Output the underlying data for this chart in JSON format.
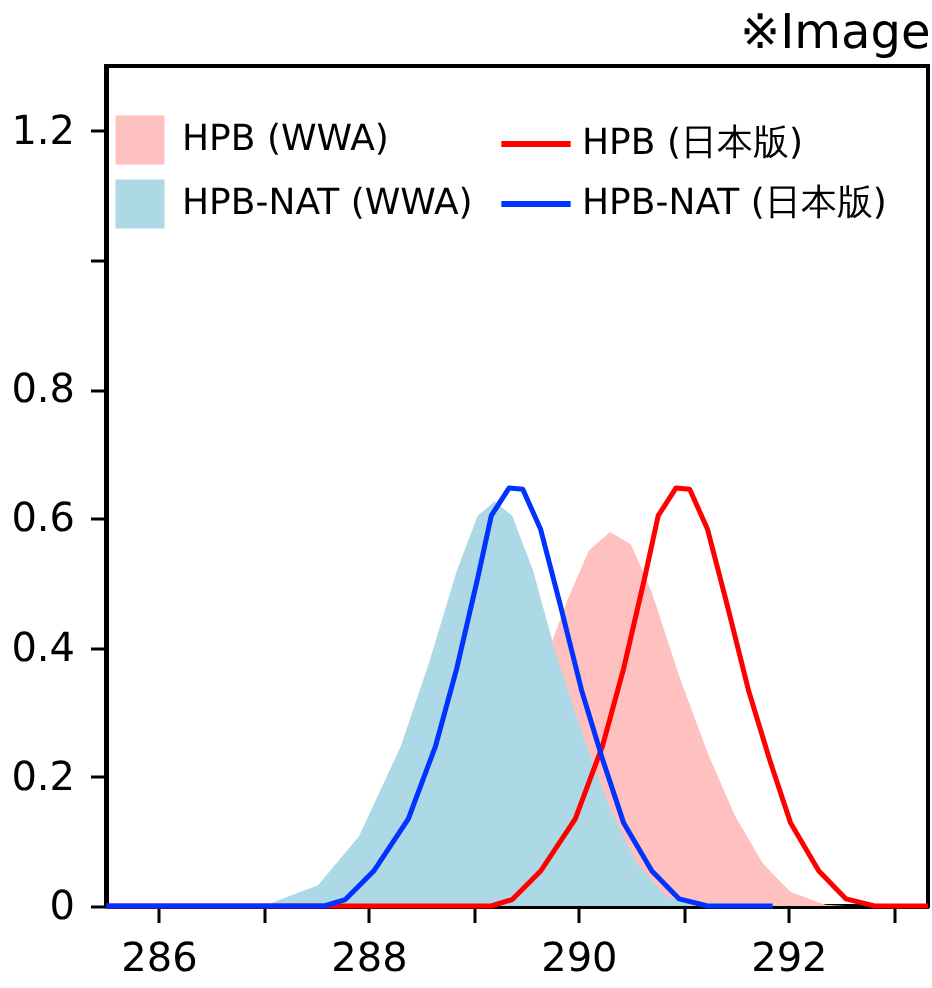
{
  "chart_data": {
    "type": "line",
    "annotations": [
      "※Image"
    ],
    "xlim": [
      285.5,
      293.33
    ],
    "ylim": [
      0,
      1.3
    ],
    "xticks": [
      286,
      {
        "value": 287,
        "label": null
      },
      288,
      {
        "value": 289,
        "label": null
      },
      290,
      {
        "value": 291,
        "label": null
      },
      292,
      {
        "value": 293,
        "label": null
      }
    ],
    "yticks": [
      0,
      0.2,
      0.4,
      0.6,
      0.8,
      {
        "value": 1.0,
        "label": null
      },
      1.2
    ],
    "grid": false,
    "legend": "top right",
    "marker": "none",
    "line_style": "solid",
    "series": [
      {
        "name": "HPB (WWA)",
        "type": "area",
        "color": "#ffc0c0",
        "x": [
          289.75,
          289.9,
          290.1,
          290.3,
          290.5,
          290.7,
          290.96,
          291.23,
          291.49,
          291.76,
          292.02,
          292.35,
          292.55
        ],
        "values": [
          0.41,
          0.475,
          0.55,
          0.579,
          0.56,
          0.485,
          0.356,
          0.237,
          0.14,
          0.065,
          0.022,
          0.002,
          0
        ]
      },
      {
        "name": "HPB-NAT (WWA)",
        "type": "area",
        "color": "#add8e6",
        "x": [
          287.0,
          287.52,
          287.91,
          288.31,
          288.58,
          288.84,
          289.04,
          289.2,
          289.37,
          289.57,
          289.77,
          290.03,
          290.3,
          290.56,
          290.83,
          291.09
        ],
        "values": [
          0,
          0.032,
          0.108,
          0.248,
          0.378,
          0.518,
          0.604,
          0.626,
          0.604,
          0.518,
          0.399,
          0.27,
          0.151,
          0.065,
          0.016,
          0
        ]
      },
      {
        "name": "HPB (日本版)",
        "color": "#ff0000",
        "x": [
          285.5,
          289.17,
          289.37,
          289.64,
          289.97,
          290.23,
          290.43,
          290.63,
          290.76,
          290.93,
          291.06,
          291.23,
          291.42,
          291.62,
          291.82,
          292.02,
          292.29,
          292.55,
          292.82,
          293.33
        ],
        "values": [
          0,
          0,
          0.01,
          0.054,
          0.135,
          0.248,
          0.367,
          0.507,
          0.604,
          0.647,
          0.645,
          0.583,
          0.464,
          0.334,
          0.227,
          0.129,
          0.054,
          0.011,
          0,
          0
        ]
      },
      {
        "name": "HPB-NAT (日本版)",
        "color": "#0033ff",
        "x": [
          285.5,
          287.58,
          287.78,
          288.05,
          288.38,
          288.64,
          288.84,
          289.04,
          289.17,
          289.34,
          289.47,
          289.64,
          289.83,
          290.03,
          290.23,
          290.43,
          290.7,
          290.96,
          291.23,
          291.85
        ],
        "values": [
          0,
          0,
          0.01,
          0.054,
          0.135,
          0.248,
          0.367,
          0.507,
          0.604,
          0.647,
          0.645,
          0.583,
          0.464,
          0.334,
          0.227,
          0.129,
          0.054,
          0.011,
          0,
          0
        ]
      }
    ]
  }
}
